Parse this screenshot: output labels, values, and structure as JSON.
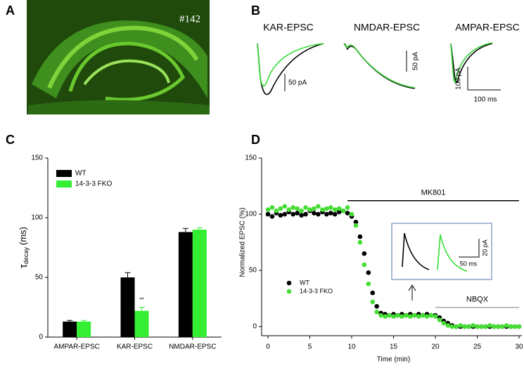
{
  "panel_A": {
    "label": "A",
    "annotation": "#142"
  },
  "panel_B": {
    "label": "B",
    "titles": [
      "KAR-EPSC",
      "NMDAR-EPSC",
      "AMPAR-EPSC"
    ],
    "scale_labels": [
      "50 pA",
      "50 pA",
      "100 pA",
      "100 ms"
    ]
  },
  "chart_data": [
    {
      "type": "bar",
      "panel_label": "C",
      "y_label": {
        "symbol": "τ",
        "subscript": "decay",
        "unit": "(ms)"
      },
      "categories": [
        "AMPAR-EPSC",
        "KAR-EPSC",
        "NMDAR-EPSC"
      ],
      "series": [
        {
          "name": "WT",
          "color": "#000000",
          "values": [
            13,
            50,
            88
          ],
          "errors": [
            1,
            4,
            3
          ]
        },
        {
          "name": "14-3-3 FKO",
          "color": "#33ee33",
          "values": [
            13,
            22,
            90
          ],
          "errors": [
            1,
            3,
            1.5
          ]
        }
      ],
      "significance": {
        "text": "**",
        "series": 1,
        "category": 1
      },
      "ylim": [
        0,
        150
      ],
      "yticks": [
        0,
        50,
        100,
        150
      ],
      "legend": "upper left"
    },
    {
      "type": "scatter",
      "panel_label": "D",
      "x_label": "Time (min)",
      "y_label": "Normalized EPSC (%)",
      "x": [
        0,
        0.5,
        1,
        1.5,
        2,
        2.5,
        3,
        3.5,
        4,
        4.5,
        5,
        5.5,
        6,
        6.5,
        7,
        7.5,
        8,
        8.5,
        9,
        9.5,
        10,
        10.5,
        11,
        11.5,
        12,
        12.5,
        13,
        13.5,
        14,
        14.5,
        15,
        15.5,
        16,
        16.5,
        17,
        17.5,
        18,
        18.5,
        19,
        19.5,
        20,
        20.5,
        21,
        21.5,
        22,
        22.5,
        23,
        23.5,
        24,
        24.5,
        25,
        25.5,
        26,
        26.5,
        27,
        27.5,
        28,
        28.5,
        29,
        29.5,
        30
      ],
      "series": [
        {
          "name": "WT",
          "color": "#000000",
          "values": [
            100,
            98,
            101,
            99,
            100,
            102,
            100,
            101,
            99,
            100,
            103,
            101,
            100,
            102,
            100,
            101,
            100,
            102,
            103,
            101,
            98,
            93,
            80,
            65,
            48,
            30,
            18,
            12,
            11,
            10,
            11,
            10,
            11,
            10,
            11,
            10,
            11,
            10,
            11,
            10,
            10,
            8,
            5,
            3,
            1,
            0,
            0,
            0,
            0,
            0,
            0,
            0,
            0,
            0,
            0,
            0,
            0,
            0,
            0,
            0,
            0
          ]
        },
        {
          "name": "14-3-3 FKO",
          "color": "#44dd33",
          "values": [
            104,
            106,
            103,
            105,
            107,
            104,
            106,
            105,
            103,
            106,
            104,
            105,
            107,
            104,
            105,
            106,
            104,
            105,
            103,
            106,
            100,
            90,
            75,
            55,
            38,
            22,
            13,
            10,
            9,
            10,
            9,
            10,
            9,
            10,
            9,
            10,
            9,
            10,
            9,
            10,
            9,
            6,
            3,
            1,
            0,
            0,
            1,
            0,
            0,
            1,
            0,
            0,
            0,
            1,
            0,
            0,
            0,
            1,
            0,
            0,
            0
          ]
        }
      ],
      "annotations": [
        {
          "text": "MK801",
          "x": [
            9.5,
            30
          ],
          "y": 112,
          "color": "#000000"
        },
        {
          "text": "NBQX",
          "x": [
            20,
            30
          ],
          "y": 17,
          "color": "#aaaaaa"
        }
      ],
      "inset": {
        "scale_labels": [
          "20 pA",
          "50 ms"
        ]
      },
      "xlim": [
        0,
        30
      ],
      "xticks": [
        0,
        5,
        10,
        15,
        20,
        25,
        30
      ],
      "ylim": [
        0,
        150
      ],
      "yticks": [
        0,
        50,
        100,
        150
      ],
      "legend": "lower left"
    }
  ]
}
